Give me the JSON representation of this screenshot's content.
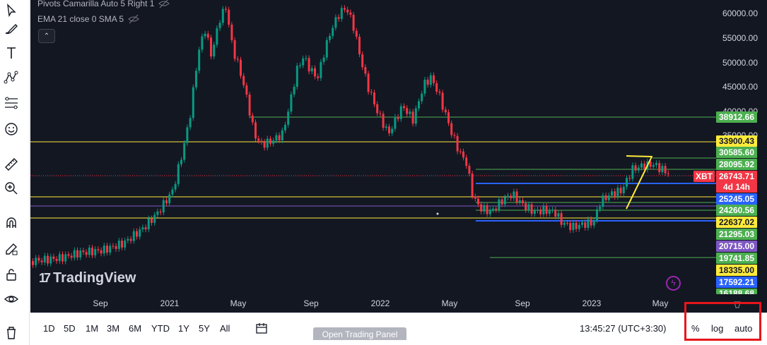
{
  "legend": {
    "pivots": "Pivots Camarilla Auto 5 Right 1",
    "ema": "EMA 21 close 0 SMA 5"
  },
  "logo": {
    "mark": "17",
    "text": "TradingView"
  },
  "price_axis": [
    "60000.00",
    "55000.00",
    "50000.00",
    "45000.00",
    "40000.00",
    "35000.00"
  ],
  "price_labels": [
    {
      "text": "38912.66",
      "bg": "#4caf50",
      "fg": "#ffffff"
    },
    {
      "text": "33900.43",
      "bg": "#ffeb3b",
      "fg": "#131722"
    },
    {
      "text": "30585.60",
      "bg": "#4caf50",
      "fg": "#ffffff"
    },
    {
      "text": "28095.92",
      "bg": "#4caf50",
      "fg": "#ffffff"
    },
    {
      "text": "26743.71",
      "bg": "#f23645",
      "fg": "#ffffff"
    },
    {
      "text": "4d 14h",
      "bg": "#f23645",
      "fg": "#ffffff"
    },
    {
      "text": "25245.05",
      "bg": "#2962ff",
      "fg": "#ffffff"
    },
    {
      "text": "24260.56",
      "bg": "#4caf50",
      "fg": "#ffffff"
    },
    {
      "text": "22637.02",
      "bg": "#ffeb3b",
      "fg": "#131722"
    },
    {
      "text": "21295.03",
      "bg": "#4caf50",
      "fg": "#ffffff"
    },
    {
      "text": "20715.00",
      "bg": "#7e57c2",
      "fg": "#ffffff"
    },
    {
      "text": "19741.85",
      "bg": "#4caf50",
      "fg": "#ffffff"
    },
    {
      "text": "18335.00",
      "bg": "#ffeb3b",
      "fg": "#131722"
    },
    {
      "text": "17592.21",
      "bg": "#2962ff",
      "fg": "#ffffff"
    },
    {
      "text": "16188.68",
      "bg": "#4caf50",
      "fg": "#ffffff"
    }
  ],
  "symbol_tag": "XBT",
  "time_axis": [
    "Sep",
    "2021",
    "May",
    "Sep",
    "2022",
    "May",
    "Sep",
    "2023",
    "May"
  ],
  "ranges": [
    "1D",
    "5D",
    "1M",
    "3M",
    "6M",
    "YTD",
    "1Y",
    "5Y",
    "All"
  ],
  "open_panel": "Open Trading Panel",
  "clock": "13:45:27 (UTC+3:30)",
  "scale": {
    "percent": "%",
    "log": "log",
    "auto": "auto"
  },
  "colors": {
    "up": "#089981",
    "down": "#f23645",
    "bg": "#131722",
    "highlight": "#e8151b"
  },
  "icons": [
    "cursor-icon",
    "brush-icon",
    "text-icon",
    "pattern-icon",
    "fib-icon",
    "emoji-icon",
    "ruler-icon",
    "zoom-icon",
    "magnet-icon",
    "lock-drawing-icon",
    "lock-icon",
    "eye-icon",
    "trash-icon"
  ]
}
